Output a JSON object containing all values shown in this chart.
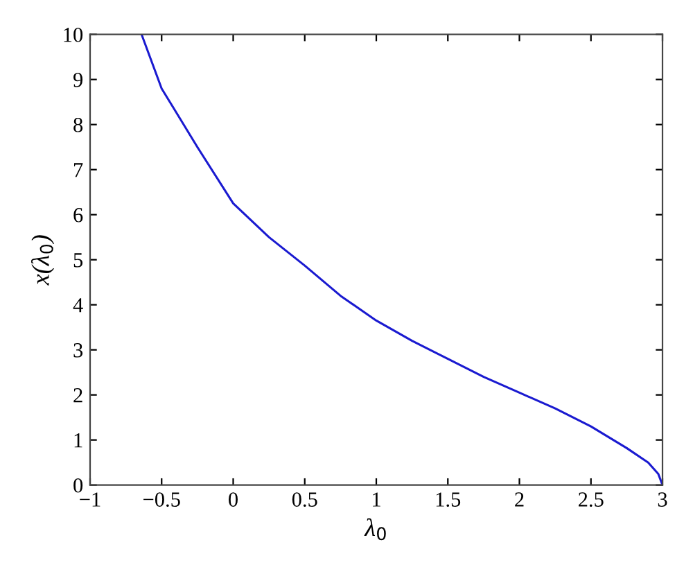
{
  "chart_data": {
    "type": "line",
    "xlabel": "λ$_{0}$",
    "ylabel": "x(λ$_{0}$)",
    "series": [
      {
        "color": "#1a1ad0",
        "x": [
          -0.64,
          -0.5,
          -0.25,
          0,
          0.25,
          0.5,
          0.75,
          1,
          1.25,
          1.5,
          1.75,
          2,
          2.25,
          2.5,
          2.75,
          2.9,
          2.97,
          3
        ],
        "values": [
          10,
          8.8,
          7.5,
          6.25,
          5.5,
          4.87,
          4.2,
          3.65,
          3.2,
          2.8,
          2.4,
          2.05,
          1.7,
          1.3,
          0.82,
          0.5,
          0.25,
          0
        ]
      }
    ],
    "xlim": [
      -1,
      3
    ],
    "ylim": [
      0,
      10
    ],
    "xticks": [
      -1,
      -0.5,
      0,
      0.5,
      1,
      1.5,
      2,
      2.5,
      3
    ],
    "yticks": [
      0,
      1,
      2,
      3,
      4,
      5,
      6,
      7,
      8,
      9,
      10
    ],
    "grid": false,
    "legend": false,
    "marker": "none",
    "line_style": "solid"
  }
}
